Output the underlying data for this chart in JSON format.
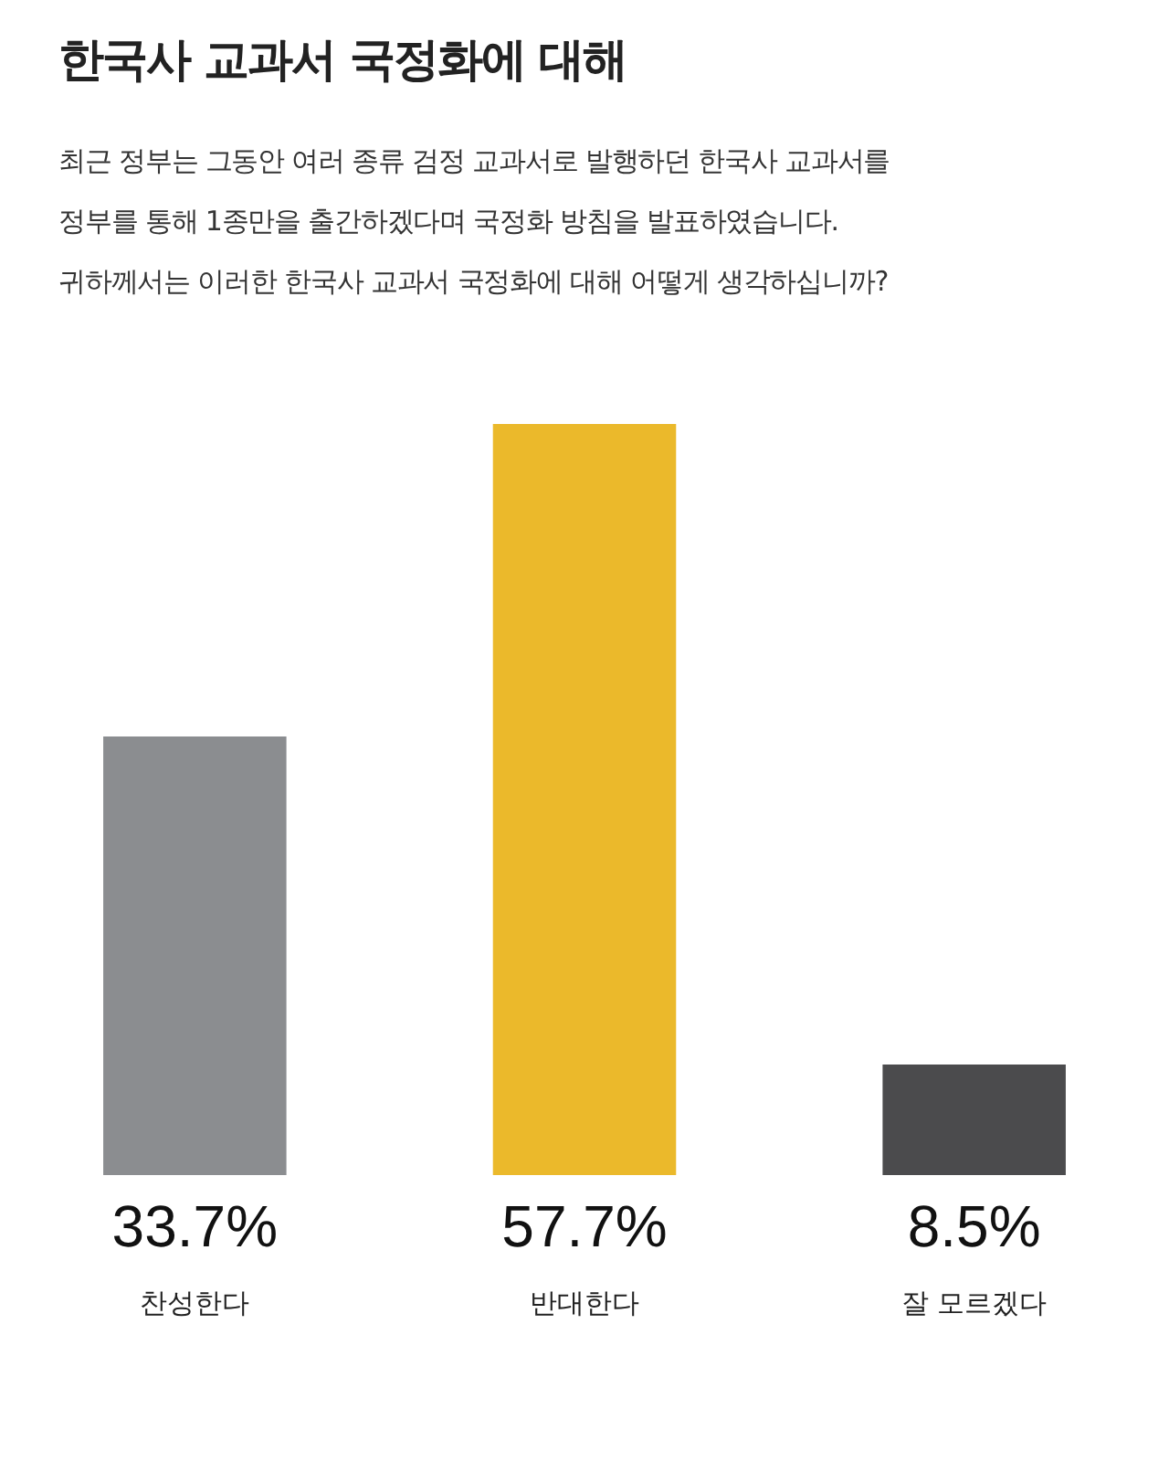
{
  "chart_data": {
    "type": "bar",
    "title": "한국사 교과서 국정화에 대해",
    "subtitle": "최근 정부는 그동안 여러 종류 검정 교과서로 발행하던 한국사 교과서를\n정부를 통해 1종만을 출간하겠다며 국정화 방침을 발표하였습니다.\n귀하께서는 이러한 한국사 교과서 국정화에 대해 어떻게 생각하십니까?",
    "categories": [
      "찬성한다",
      "반대한다",
      "잘 모르겠다"
    ],
    "values": [
      33.7,
      57.7,
      8.5
    ],
    "colors": [
      "#8b8d90",
      "#ebb92b",
      "#4b4b4d"
    ],
    "value_labels": [
      "33.7%",
      "57.7%",
      "8.5%"
    ],
    "tick_labels": "x",
    "grid": false,
    "legend": false
  }
}
